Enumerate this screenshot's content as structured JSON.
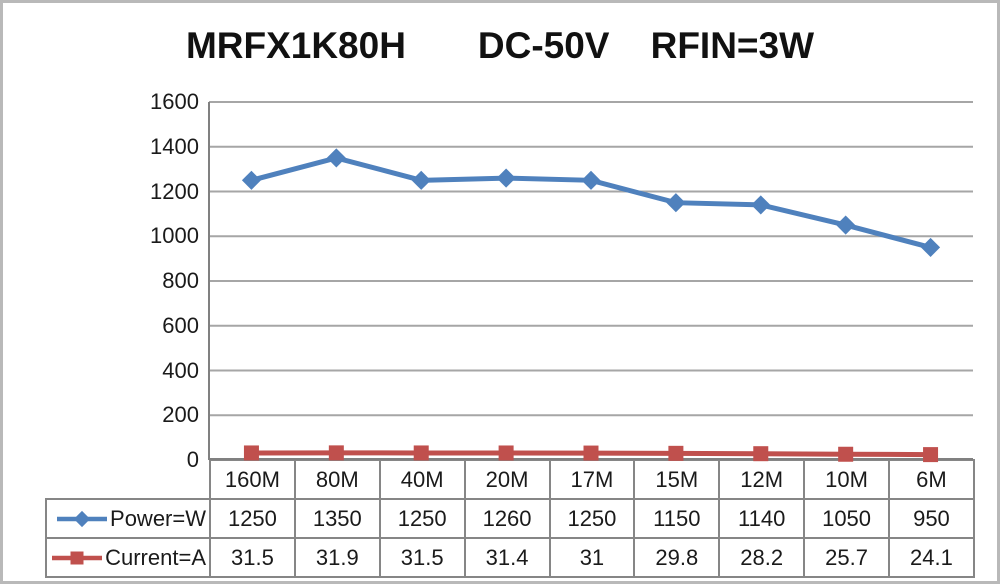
{
  "window": {
    "background": "#ffffff",
    "border_color": "#b9b9b9"
  },
  "chart_data": {
    "type": "line",
    "title": "MRFX1K80H       DC-50V    RFIN=3W",
    "categories": [
      "160M",
      "80M",
      "40M",
      "20M",
      "17M",
      "15M",
      "12M",
      "10M",
      "6M"
    ],
    "series": [
      {
        "name": "Power=W",
        "marker": "diamond",
        "color": "#4F81BD",
        "values": [
          1250,
          1350,
          1250,
          1260,
          1250,
          1150,
          1140,
          1050,
          950
        ],
        "display": [
          "1250",
          "1350",
          "1250",
          "1260",
          "1250",
          "1150",
          "1140",
          "1050",
          "950"
        ]
      },
      {
        "name": "Current=A",
        "marker": "square",
        "color": "#C0504D",
        "values": [
          31.5,
          31.9,
          31.5,
          31.4,
          31,
          29.8,
          28.2,
          25.7,
          24.1
        ],
        "display": [
          "31.5",
          "31.9",
          "31.5",
          "31.4",
          "31",
          "29.8",
          "28.2",
          "25.7",
          "24.1"
        ]
      }
    ],
    "xlabel": "",
    "ylabel": "",
    "ylim": [
      0,
      1600
    ],
    "ytick_step": 200,
    "yticks": [
      "0",
      "200",
      "400",
      "600",
      "800",
      "1000",
      "1200",
      "1400",
      "1600"
    ],
    "grid": true,
    "legend_position": "table-left",
    "colors": {
      "gridline": "#A6A6A6",
      "axis": "#808080",
      "table_border": "#868686",
      "text": "#1a1a1a"
    }
  }
}
